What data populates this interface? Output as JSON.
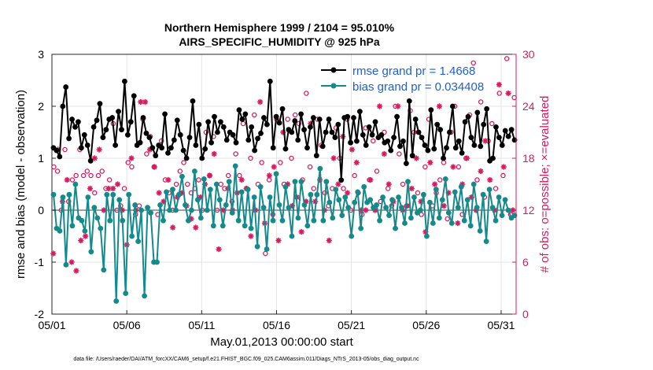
{
  "chart_data": {
    "type": "line",
    "title": "Northern Hemisphere 1999 / 2104 = 95.010%",
    "subtitle": "AIRS_SPECIFIC_HUMIDITY @ 925 hPa",
    "xlabel": "May.01,2013 00:00:00 start",
    "ylabel": "rmse and bias (model - observation)",
    "y2label": "# of obs: o=possible; ×=evaluated",
    "footer": "data file: /Users/raeder/DAI/ATM_forcXX/CAM6_setup/f.e21.FHIST_BGC.f09_025.CAM6assim.011/Diags_NTrS_2013-05/obs_diag_output.nc",
    "x_ticks": [
      "05/01",
      "05/06",
      "05/11",
      "05/16",
      "05/21",
      "05/26",
      "05/31"
    ],
    "x_tick_days": [
      1,
      6,
      11,
      16,
      21,
      26,
      31
    ],
    "xlim": [
      1,
      32
    ],
    "ylim": [
      -2,
      3
    ],
    "y_ticks": [
      "-2",
      "-1",
      "0",
      "1",
      "2",
      "3"
    ],
    "y2lim": [
      0,
      30
    ],
    "y2_ticks": [
      "0",
      "6",
      "12",
      "18",
      "24",
      "30"
    ],
    "legend": [
      {
        "name": "rmse grand pr = 1.4668",
        "color": "#000000"
      },
      {
        "name": "bias grand pr = 0.034408",
        "color": "#148a8a"
      }
    ],
    "series": [
      {
        "name": "rmse",
        "color": "#000000",
        "values": [
          1.2,
          1.15,
          1.03,
          2.0,
          2.37,
          1.38,
          1.75,
          1.6,
          1.7,
          1.2,
          1.45,
          1.25,
          0.95,
          1.6,
          1.73,
          2.05,
          1.4,
          1.55,
          1.75,
          1.78,
          1.25,
          1.9,
          1.55,
          2.48,
          1.45,
          1.7,
          2.2,
          1.25,
          1.3,
          1.78,
          1.48,
          1.4,
          1.2,
          1.05,
          1.25,
          1.2,
          1.85,
          1.1,
          1.2,
          1.35,
          1.73,
          1.45,
          1.15,
          1.0,
          1.4,
          2.1,
          1.25,
          1.65,
          1.0,
          1.18,
          1.7,
          1.3,
          1.8,
          1.5,
          1.7,
          1.6,
          1.35,
          1.5,
          1.45,
          1.3,
          1.93,
          1.75,
          1.85,
          1.35,
          1.6,
          1.15,
          1.38,
          1.48,
          1.78,
          1.65,
          2.48,
          1.2,
          1.8,
          1.68,
          1.95,
          1.18,
          1.55,
          1.5,
          1.72,
          1.35,
          1.85,
          1.55,
          1.2,
          1.6,
          1.78,
          1.05,
          1.75,
          1.23,
          1.5,
          1.75,
          1.5,
          1.4,
          1.65,
          0.58,
          1.78,
          1.8,
          1.3,
          1.78,
          1.33,
          1.9,
          1.45,
          1.25,
          1.6,
          1.45,
          1.7,
          1.4,
          1.45,
          1.3,
          1.33,
          1.15,
          1.4,
          1.8,
          1.23,
          1.33,
          0.9,
          2.1,
          1.05,
          1.75,
          1.5,
          1.4,
          1.25,
          1.15,
          1.93,
          1.18,
          1.65,
          1.55,
          1.0,
          1.2,
          1.5,
          2.0,
          1.2,
          1.33,
          1.1,
          1.7,
          1.8,
          1.4,
          1.25,
          1.88,
          1.23,
          1.65,
          1.95,
          0.95,
          1.0,
          1.6,
          1.4,
          1.25,
          1.53,
          1.42,
          1.55,
          1.35
        ]
      },
      {
        "name": "bias",
        "color": "#148a8a",
        "values": [
          0.3,
          -0.35,
          -0.4,
          0.25,
          -1.05,
          0.3,
          -0.3,
          0.5,
          -0.15,
          -0.2,
          -0.4,
          0.25,
          -0.8,
          0.05,
          -0.15,
          -0.35,
          -1.15,
          0.3,
          -0.2,
          0.3,
          -1.75,
          0.2,
          -0.2,
          -1.6,
          0.3,
          -0.5,
          0.1,
          -0.6,
          0.0,
          -1.65,
          0.05,
          -0.05,
          -1.0,
          -1.0,
          0.1,
          -0.2,
          0.35,
          0.0,
          0.4,
          0.0,
          0.3,
          0.65,
          0.1,
          -0.2,
          0.0,
          0.75,
          0.2,
          -0.15,
          0.6,
          0.0,
          0.4,
          -0.3,
          0.5,
          0.2,
          -0.3,
          0.1,
          0.55,
          -0.05,
          0.85,
          -0.2,
          0.35,
          -0.3,
          0.4,
          -0.35,
          0.25,
          -0.7,
          0.45,
          0.05,
          -0.75,
          0.25,
          -0.2,
          0.7,
          0.1,
          -0.2,
          0.45,
          0.05,
          -0.5,
          0.55,
          -0.15,
          0.55,
          0.1,
          -0.3,
          0.3,
          -0.2,
          0.3,
          0.8,
          -0.2,
          0.55,
          0.15,
          -0.15,
          0.4,
          0.2,
          -0.1,
          0.25,
          0.05,
          -0.5,
          0.15,
          0.35,
          -0.35,
          0.45,
          0.15,
          0.2,
          0.05,
          0.1,
          -0.2,
          0.25,
          0.05,
          -0.1,
          0.2,
          -0.35,
          0.25,
          0.05,
          -0.25,
          0.55,
          -0.15,
          0.25,
          -0.05,
          0.0,
          0.3,
          -0.5,
          0.15,
          -0.25,
          0.4,
          -0.15,
          0.2,
          0.6,
          -0.05,
          -0.25,
          0.35,
          0.05,
          0.45,
          -0.2,
          0.2,
          -0.3,
          0.5,
          0.05,
          -0.4,
          0.3,
          -0.6,
          0.4,
          0.05,
          -0.2,
          0.25,
          -0.1,
          0.2,
          0.0,
          -0.15,
          -0.1
        ]
      },
      {
        "name": "obs possible",
        "marker": "o",
        "color": "#d81b60",
        "values": [
          17.0,
          16.5,
          12.0,
          19.0,
          13.0,
          15.5,
          16.0,
          19.0,
          16.0,
          16.5,
          16.0,
          14.0,
          16.0,
          16.5,
          14.5,
          15.5,
          22.0,
          12.0,
          12.5,
          14.5,
          17.5,
          17.0,
          11.5,
          12.5,
          22.5,
          18.5,
          20.5,
          17.0,
          11.5,
          20.0,
          15.5,
          14.0,
          12.0,
          15.0,
          16.5,
          17.5,
          15.0,
          14.0,
          14.5,
          15.5,
          12.0,
          21.0,
          16.0,
          20.5,
          12.0,
          15.0,
          14.5,
          16.0,
          13.0,
          18.5,
          16.0,
          22.0,
          14.5,
          18.0,
          23.0,
          15.0,
          17.5,
          7.0,
          15.5,
          11.5,
          22.5,
          17.5,
          15.0,
          22.5,
          18.0,
          23.0,
          22.0,
          15.5,
          25.5,
          17.0,
          14.5,
          22.5,
          19.5,
          14.0,
          12.5,
          14.5,
          21.5,
          18.0,
          14.5,
          22.5,
          12.0,
          16.0,
          14.0,
          11.5,
          21.5,
          15.5,
          20.0,
          16.5,
          13.0,
          21.0,
          14.5,
          12.5,
          24.0,
          18.5,
          15.0,
          12.5,
          23.5,
          21.0,
          14.0,
          11.5,
          17.0,
          22.5,
          12.5,
          14.0,
          15.5,
          17.5,
          11.0,
          21.0,
          24.0,
          17.0,
          11.5,
          18.0,
          23.0,
          29.0,
          15.5,
          24.5,
          13.5,
          20.0,
          22.0,
          14.5,
          25.5,
          16.0,
          29.5,
          11.5,
          25.0
        ]
      },
      {
        "name": "obs evaluated",
        "marker": "x",
        "color": "#d81b60",
        "values": [
          7.0,
          19.0,
          13.0,
          15.5,
          6.0,
          5.0,
          8.5,
          9.0,
          14.5,
          18.0,
          19.0,
          12.0,
          14.5,
          14.5,
          15.0,
          12.0,
          8.0,
          18.0,
          12.0,
          24.5,
          24.5,
          19.0,
          17.0,
          14.0,
          13.0,
          15.5,
          10.0,
          13.5,
          14.0,
          12.5,
          11.0,
          10.0,
          13.5,
          15.0,
          16.0,
          18.5,
          7.5,
          12.0,
          14.5,
          12.0,
          14.0,
          15.5,
          14.5,
          9.0,
          12.0,
          24.5,
          10.5,
          16.0,
          17.0,
          8.5,
          21.0,
          15.0,
          12.5,
          13.5,
          9.5,
          13.0,
          22.0,
          13.0,
          15.5,
          12.0,
          8.5,
          18.0,
          15.0,
          20.5,
          14.0,
          19.0,
          17.5,
          12.0,
          12.0,
          15.5,
          12.0,
          24.0,
          18.5,
          15.0,
          13.0,
          24.0,
          12.0,
          12.5,
          14.5,
          18.0,
          13.0,
          9.5,
          17.5,
          15.0,
          24.0,
          12.5,
          14.0,
          17.0,
          10.5,
          15.0,
          18.0,
          13.5,
          12.0,
          16.5,
          20.0,
          15.5,
          12.0,
          26.5,
          17.0,
          25.5,
          12.0
        ]
      }
    ]
  }
}
